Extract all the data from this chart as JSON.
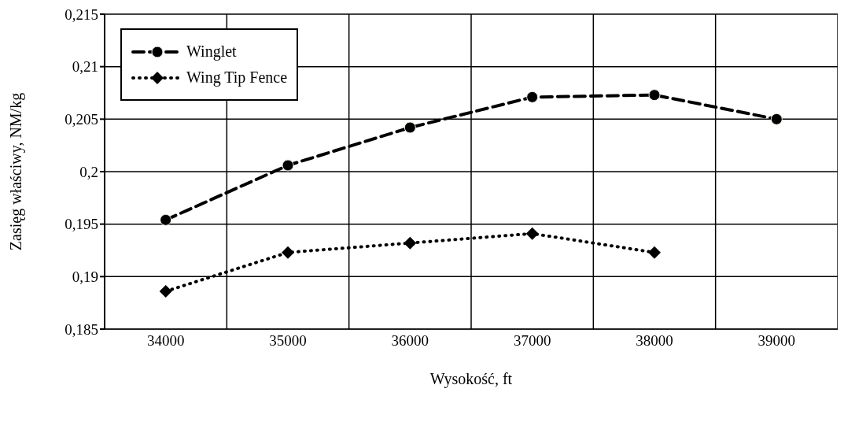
{
  "chart_data": {
    "type": "line",
    "xlabel": "Wysokość, ft",
    "ylabel": "Zasięg właściwy, NM/kg",
    "categories": [
      "34000",
      "35000",
      "36000",
      "37000",
      "38000",
      "39000"
    ],
    "series": [
      {
        "name": "Winglet",
        "color": "#000000",
        "line_style": "dashed",
        "marker": "circle",
        "values": [
          0.1954,
          0.2006,
          0.2042,
          0.2071,
          0.2073,
          0.205
        ]
      },
      {
        "name": "Wing Tip Fence",
        "color": "#000000",
        "line_style": "dotted",
        "marker": "diamond",
        "values": [
          0.1886,
          0.1923,
          0.1932,
          0.1941,
          0.1923,
          null
        ]
      }
    ],
    "ylim": [
      0.185,
      0.215
    ],
    "yticks": [
      {
        "value": 0.185,
        "label": "0,185"
      },
      {
        "value": 0.19,
        "label": "0,19"
      },
      {
        "value": 0.195,
        "label": "0,195"
      },
      {
        "value": 0.2,
        "label": "0,2"
      },
      {
        "value": 0.205,
        "label": "0,205"
      },
      {
        "value": 0.21,
        "label": "0,21"
      },
      {
        "value": 0.215,
        "label": "0,215"
      }
    ],
    "grid": true,
    "legend": "top left"
  }
}
